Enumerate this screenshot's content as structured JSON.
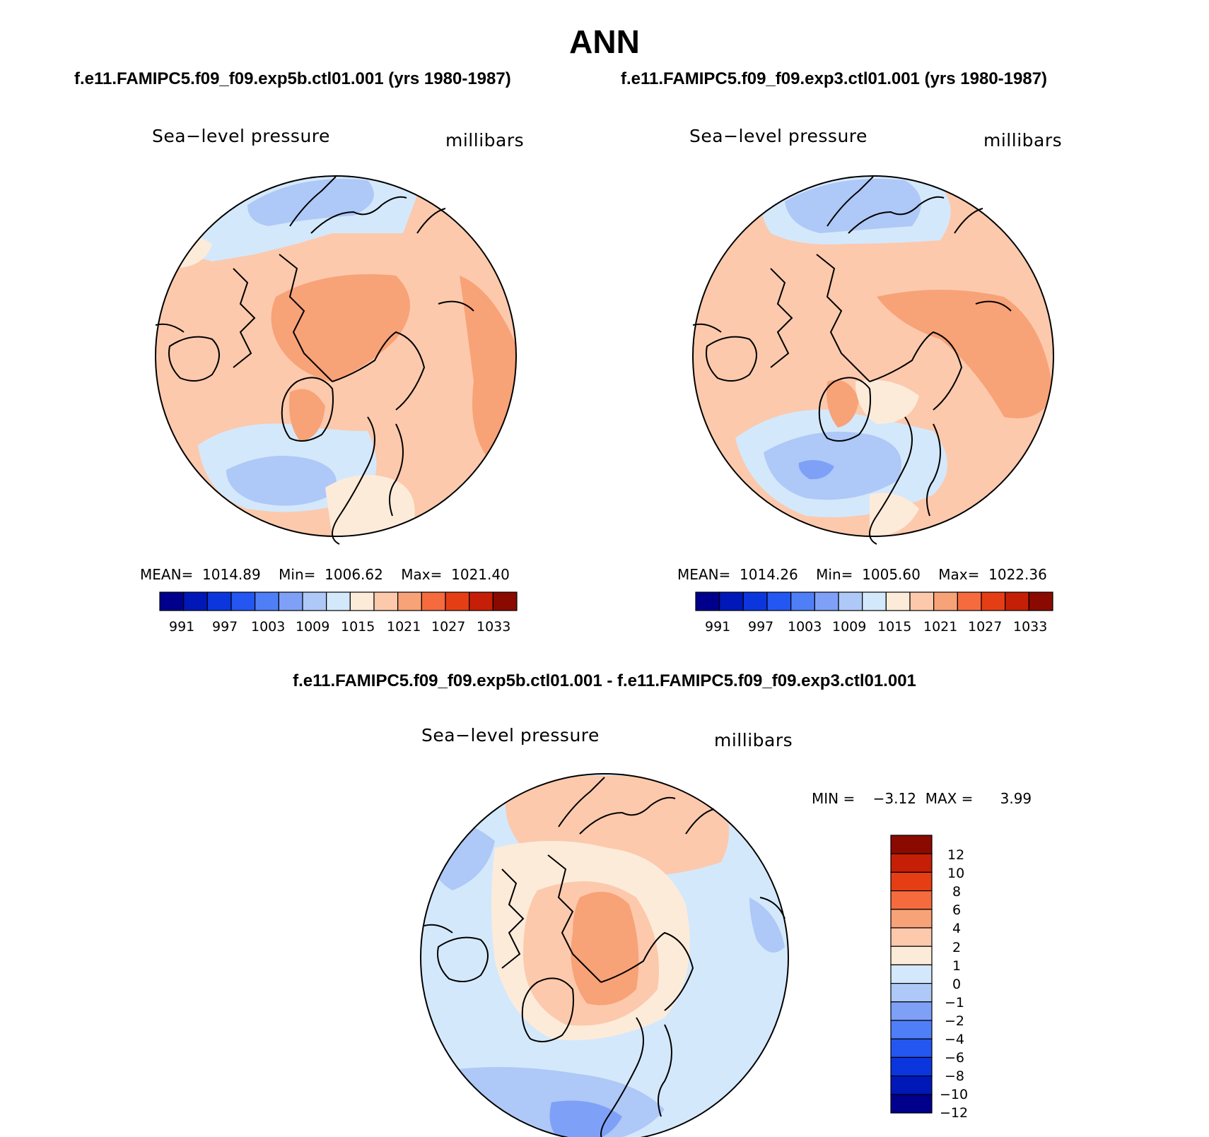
{
  "title": "ANN",
  "subtitles": {
    "left": "f.e11.FAMIPC5.f09_f09.exp5b.ctl01.001 (yrs 1980-1987)",
    "right": "f.e11.FAMIPC5.f09_f09.exp3.ctl01.001 (yrs 1980-1987)",
    "diff": "f.e11.FAMIPC5.f09_f09.exp5b.ctl01.001 - f.e11.FAMIPC5.f09_f09.exp3.ctl01.001"
  },
  "panels": [
    {
      "id": "exp5b",
      "variable": "Sea−level pressure",
      "units": "millibars",
      "stats": {
        "mean_label": "MEAN=",
        "mean": "1014.89",
        "min_label": "Min=",
        "min": "1006.62",
        "max_label": "Max=",
        "max": "1021.40"
      },
      "colorbar_ticks": [
        "991",
        "997",
        "1003",
        "1009",
        "1015",
        "1021",
        "1027",
        "1033"
      ]
    },
    {
      "id": "exp3",
      "variable": "Sea−level pressure",
      "units": "millibars",
      "stats": {
        "mean_label": "MEAN=",
        "mean": "1014.26",
        "min_label": "Min=",
        "min": "1005.60",
        "max_label": "Max=",
        "max": "1022.36"
      },
      "colorbar_ticks": [
        "991",
        "997",
        "1003",
        "1009",
        "1015",
        "1021",
        "1027",
        "1033"
      ]
    },
    {
      "id": "diff",
      "variable": "Sea−level pressure",
      "units": "millibars",
      "stats": {
        "min_label": "MIN =",
        "min": "−3.12",
        "max_label": "MAX =",
        "max": "3.99"
      },
      "colorbar_ticks": [
        "12",
        "10",
        "8",
        "6",
        "4",
        "2",
        "1",
        "0",
        "−1",
        "−2",
        "−4",
        "−6",
        "−8",
        "−10",
        "−12"
      ]
    }
  ],
  "colors": {
    "scale": [
      "#00008c",
      "#0018b8",
      "#0b36de",
      "#2456f2",
      "#4f7ff7",
      "#7ea1f7",
      "#aec8f7",
      "#d4e8fb",
      "#fdebda",
      "#fcc9ac",
      "#f8a277",
      "#f56b3e",
      "#e53e14",
      "#c51f07",
      "#8b0a00"
    ],
    "outline": "#000000"
  }
}
